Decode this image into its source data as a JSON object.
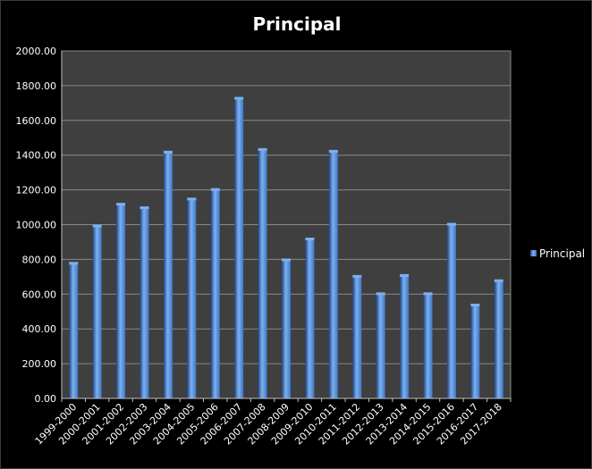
{
  "chart_data": {
    "type": "bar",
    "title": "Principal",
    "xlabel": "",
    "ylabel": "",
    "categories": [
      "1999-2000",
      "2000-2001",
      "2001-2002",
      "2002-2003",
      "2003-2004",
      "2004-2005",
      "2005-2006",
      "2006-2007",
      "2007-2008",
      "2008-2009",
      "2009-2010",
      "2010-2011",
      "2011-2012",
      "2012-2013",
      "2013-2014",
      "2014-2015",
      "2015-2016",
      "2016-2017",
      "2017-2018"
    ],
    "series": [
      {
        "name": "Principal",
        "values": [
          775,
          990,
          1115,
          1095,
          1415,
          1145,
          1200,
          1725,
          1430,
          795,
          915,
          1420,
          700,
          600,
          705,
          600,
          1000,
          535,
          675
        ]
      }
    ],
    "ylim": [
      0,
      2000
    ],
    "yticks": [
      "0.00",
      "200.00",
      "400.00",
      "600.00",
      "800.00",
      "1000.00",
      "1200.00",
      "1400.00",
      "1600.00",
      "1800.00",
      "2000.00"
    ],
    "grid": true,
    "legend_position": "right",
    "colors": {
      "background": "#000000",
      "plot_area": "#3f3f3f",
      "gridline": "#8a8a8a",
      "bar": "#3b78c8",
      "bar_highlight": "#7fb0ee",
      "bar_shadow": "#1d4585",
      "text": "#ffffff"
    }
  }
}
